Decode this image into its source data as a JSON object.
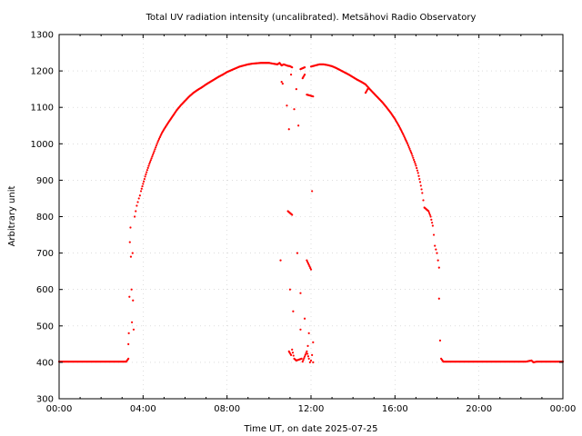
{
  "chart_data": {
    "type": "scatter",
    "title": "Total UV radiation intensity (uncalibrated). Metsähovi Radio Observatory",
    "xlabel": "Time UT, on date 2025-07-25",
    "ylabel": "Arbitrary unit",
    "xlim": [
      0,
      24
    ],
    "ylim": [
      300,
      1300
    ],
    "x_ticks": [
      0,
      4,
      8,
      12,
      16,
      20,
      24
    ],
    "x_tick_labels": [
      "00:00",
      "04:00",
      "08:00",
      "12:00",
      "16:00",
      "20:00",
      "00:00"
    ],
    "y_ticks": [
      300,
      400,
      500,
      600,
      700,
      800,
      900,
      1000,
      1100,
      1200,
      1300
    ],
    "y_tick_labels": [
      "300",
      "400",
      "500",
      "600",
      "700",
      "800",
      "900",
      "1000",
      "1100",
      "1200",
      "1300"
    ],
    "grid": true,
    "color": "#ff0000",
    "series": [
      {
        "name": "",
        "points": [
          [
            0.0,
            402
          ],
          [
            0.25,
            402
          ],
          [
            0.5,
            402
          ],
          [
            0.75,
            402
          ],
          [
            1.0,
            402
          ],
          [
            1.25,
            402
          ],
          [
            1.5,
            402
          ],
          [
            1.75,
            402
          ],
          [
            2.0,
            402
          ],
          [
            2.25,
            402
          ],
          [
            2.5,
            402
          ],
          [
            2.75,
            402
          ],
          [
            3.0,
            402
          ],
          [
            3.2,
            402
          ],
          [
            3.3,
            410
          ],
          [
            3.3,
            450
          ],
          [
            3.32,
            480
          ],
          [
            3.35,
            580
          ],
          [
            3.37,
            730
          ],
          [
            3.4,
            770
          ],
          [
            3.42,
            690
          ],
          [
            3.45,
            600
          ],
          [
            3.47,
            510
          ],
          [
            3.5,
            700
          ],
          [
            3.52,
            570
          ],
          [
            3.55,
            490
          ],
          [
            3.6,
            800
          ],
          [
            3.65,
            815
          ],
          [
            3.7,
            830
          ],
          [
            3.75,
            840
          ],
          [
            3.8,
            850
          ],
          [
            3.85,
            858
          ],
          [
            3.9,
            870
          ],
          [
            4.0,
            890
          ],
          [
            4.1,
            910
          ],
          [
            4.2,
            928
          ],
          [
            4.3,
            945
          ],
          [
            4.4,
            960
          ],
          [
            4.5,
            975
          ],
          [
            4.6,
            990
          ],
          [
            4.7,
            1005
          ],
          [
            4.8,
            1018
          ],
          [
            4.9,
            1030
          ],
          [
            5.0,
            1040
          ],
          [
            5.2,
            1058
          ],
          [
            5.4,
            1075
          ],
          [
            5.6,
            1092
          ],
          [
            5.8,
            1106
          ],
          [
            6.0,
            1118
          ],
          [
            6.2,
            1130
          ],
          [
            6.4,
            1140
          ],
          [
            6.6,
            1148
          ],
          [
            6.8,
            1155
          ],
          [
            7.0,
            1163
          ],
          [
            7.2,
            1170
          ],
          [
            7.4,
            1177
          ],
          [
            7.6,
            1184
          ],
          [
            7.8,
            1190
          ],
          [
            8.0,
            1197
          ],
          [
            8.2,
            1202
          ],
          [
            8.4,
            1207
          ],
          [
            8.6,
            1212
          ],
          [
            8.8,
            1215
          ],
          [
            9.0,
            1218
          ],
          [
            9.2,
            1220
          ],
          [
            9.4,
            1221
          ],
          [
            9.6,
            1222
          ],
          [
            9.8,
            1222
          ],
          [
            10.0,
            1222
          ],
          [
            10.2,
            1220
          ],
          [
            10.4,
            1218
          ],
          [
            10.5,
            1222
          ],
          [
            10.6,
            1215
          ],
          [
            10.7,
            1218
          ],
          [
            10.8,
            1216
          ],
          [
            10.9,
            1214
          ],
          [
            11.0,
            1213
          ],
          [
            11.1,
            1210
          ],
          [
            10.6,
            1170
          ],
          [
            10.65,
            1165
          ],
          [
            10.55,
            680
          ],
          [
            10.85,
            1105
          ],
          [
            10.95,
            1040
          ],
          [
            11.05,
            1190
          ],
          [
            11.2,
            1095
          ],
          [
            11.3,
            1150
          ],
          [
            11.4,
            1050
          ],
          [
            11.6,
            1180
          ],
          [
            11.7,
            1190
          ],
          [
            11.8,
            1135
          ],
          [
            12.1,
            1130
          ],
          [
            12.05,
            870
          ],
          [
            10.9,
            815
          ],
          [
            11.1,
            805
          ],
          [
            11.35,
            700
          ],
          [
            11.5,
            590
          ],
          [
            11.7,
            520
          ],
          [
            11.8,
            680
          ],
          [
            12.0,
            655
          ],
          [
            11.0,
            600
          ],
          [
            11.15,
            540
          ],
          [
            11.5,
            490
          ],
          [
            11.9,
            480
          ],
          [
            10.95,
            430
          ],
          [
            11.05,
            420
          ],
          [
            11.1,
            435
          ],
          [
            11.2,
            410
          ],
          [
            11.3,
            405
          ],
          [
            11.55,
            410
          ],
          [
            11.6,
            402
          ],
          [
            11.8,
            430
          ],
          [
            11.9,
            410
          ],
          [
            11.95,
            400
          ],
          [
            12.0,
            405
          ],
          [
            12.05,
            420
          ],
          [
            12.1,
            455
          ],
          [
            12.1,
            400
          ],
          [
            11.85,
            445
          ],
          [
            11.5,
            1205
          ],
          [
            11.7,
            1210
          ],
          [
            12.0,
            1212
          ],
          [
            12.2,
            1215
          ],
          [
            12.4,
            1218
          ],
          [
            12.6,
            1218
          ],
          [
            12.8,
            1216
          ],
          [
            13.0,
            1213
          ],
          [
            13.2,
            1208
          ],
          [
            13.4,
            1202
          ],
          [
            13.6,
            1196
          ],
          [
            13.8,
            1190
          ],
          [
            14.0,
            1183
          ],
          [
            14.2,
            1176
          ],
          [
            14.4,
            1170
          ],
          [
            14.6,
            1163
          ],
          [
            14.8,
            1150
          ],
          [
            15.0,
            1138
          ],
          [
            15.2,
            1126
          ],
          [
            15.4,
            1114
          ],
          [
            15.6,
            1100
          ],
          [
            15.8,
            1085
          ],
          [
            16.0,
            1068
          ],
          [
            16.2,
            1048
          ],
          [
            16.4,
            1025
          ],
          [
            16.6,
            1000
          ],
          [
            16.8,
            972
          ],
          [
            17.0,
            940
          ],
          [
            17.1,
            920
          ],
          [
            17.2,
            895
          ],
          [
            17.3,
            865
          ],
          [
            17.35,
            845
          ],
          [
            17.4,
            825
          ],
          [
            17.5,
            820
          ],
          [
            17.6,
            815
          ],
          [
            17.7,
            800
          ],
          [
            17.8,
            775
          ],
          [
            17.85,
            750
          ],
          [
            17.9,
            720
          ],
          [
            17.95,
            710
          ],
          [
            18.0,
            700
          ],
          [
            18.05,
            680
          ],
          [
            18.1,
            660
          ],
          [
            14.6,
            1140
          ],
          [
            14.7,
            1150
          ],
          [
            16.5,
            1012
          ],
          [
            18.1,
            575
          ],
          [
            18.15,
            460
          ],
          [
            18.2,
            410
          ],
          [
            18.3,
            402
          ],
          [
            18.5,
            402
          ],
          [
            18.75,
            402
          ],
          [
            19.0,
            402
          ],
          [
            19.25,
            402
          ],
          [
            19.5,
            402
          ],
          [
            19.75,
            402
          ],
          [
            20.0,
            402
          ],
          [
            20.25,
            402
          ],
          [
            20.5,
            402
          ],
          [
            20.75,
            402
          ],
          [
            21.0,
            402
          ],
          [
            21.25,
            402
          ],
          [
            21.5,
            402
          ],
          [
            21.75,
            402
          ],
          [
            22.0,
            402
          ],
          [
            22.25,
            402
          ],
          [
            22.5,
            405
          ],
          [
            22.6,
            400
          ],
          [
            22.75,
            402
          ],
          [
            23.0,
            402
          ],
          [
            23.25,
            402
          ],
          [
            23.5,
            402
          ],
          [
            23.75,
            402
          ],
          [
            24.0,
            402
          ]
        ]
      }
    ]
  }
}
